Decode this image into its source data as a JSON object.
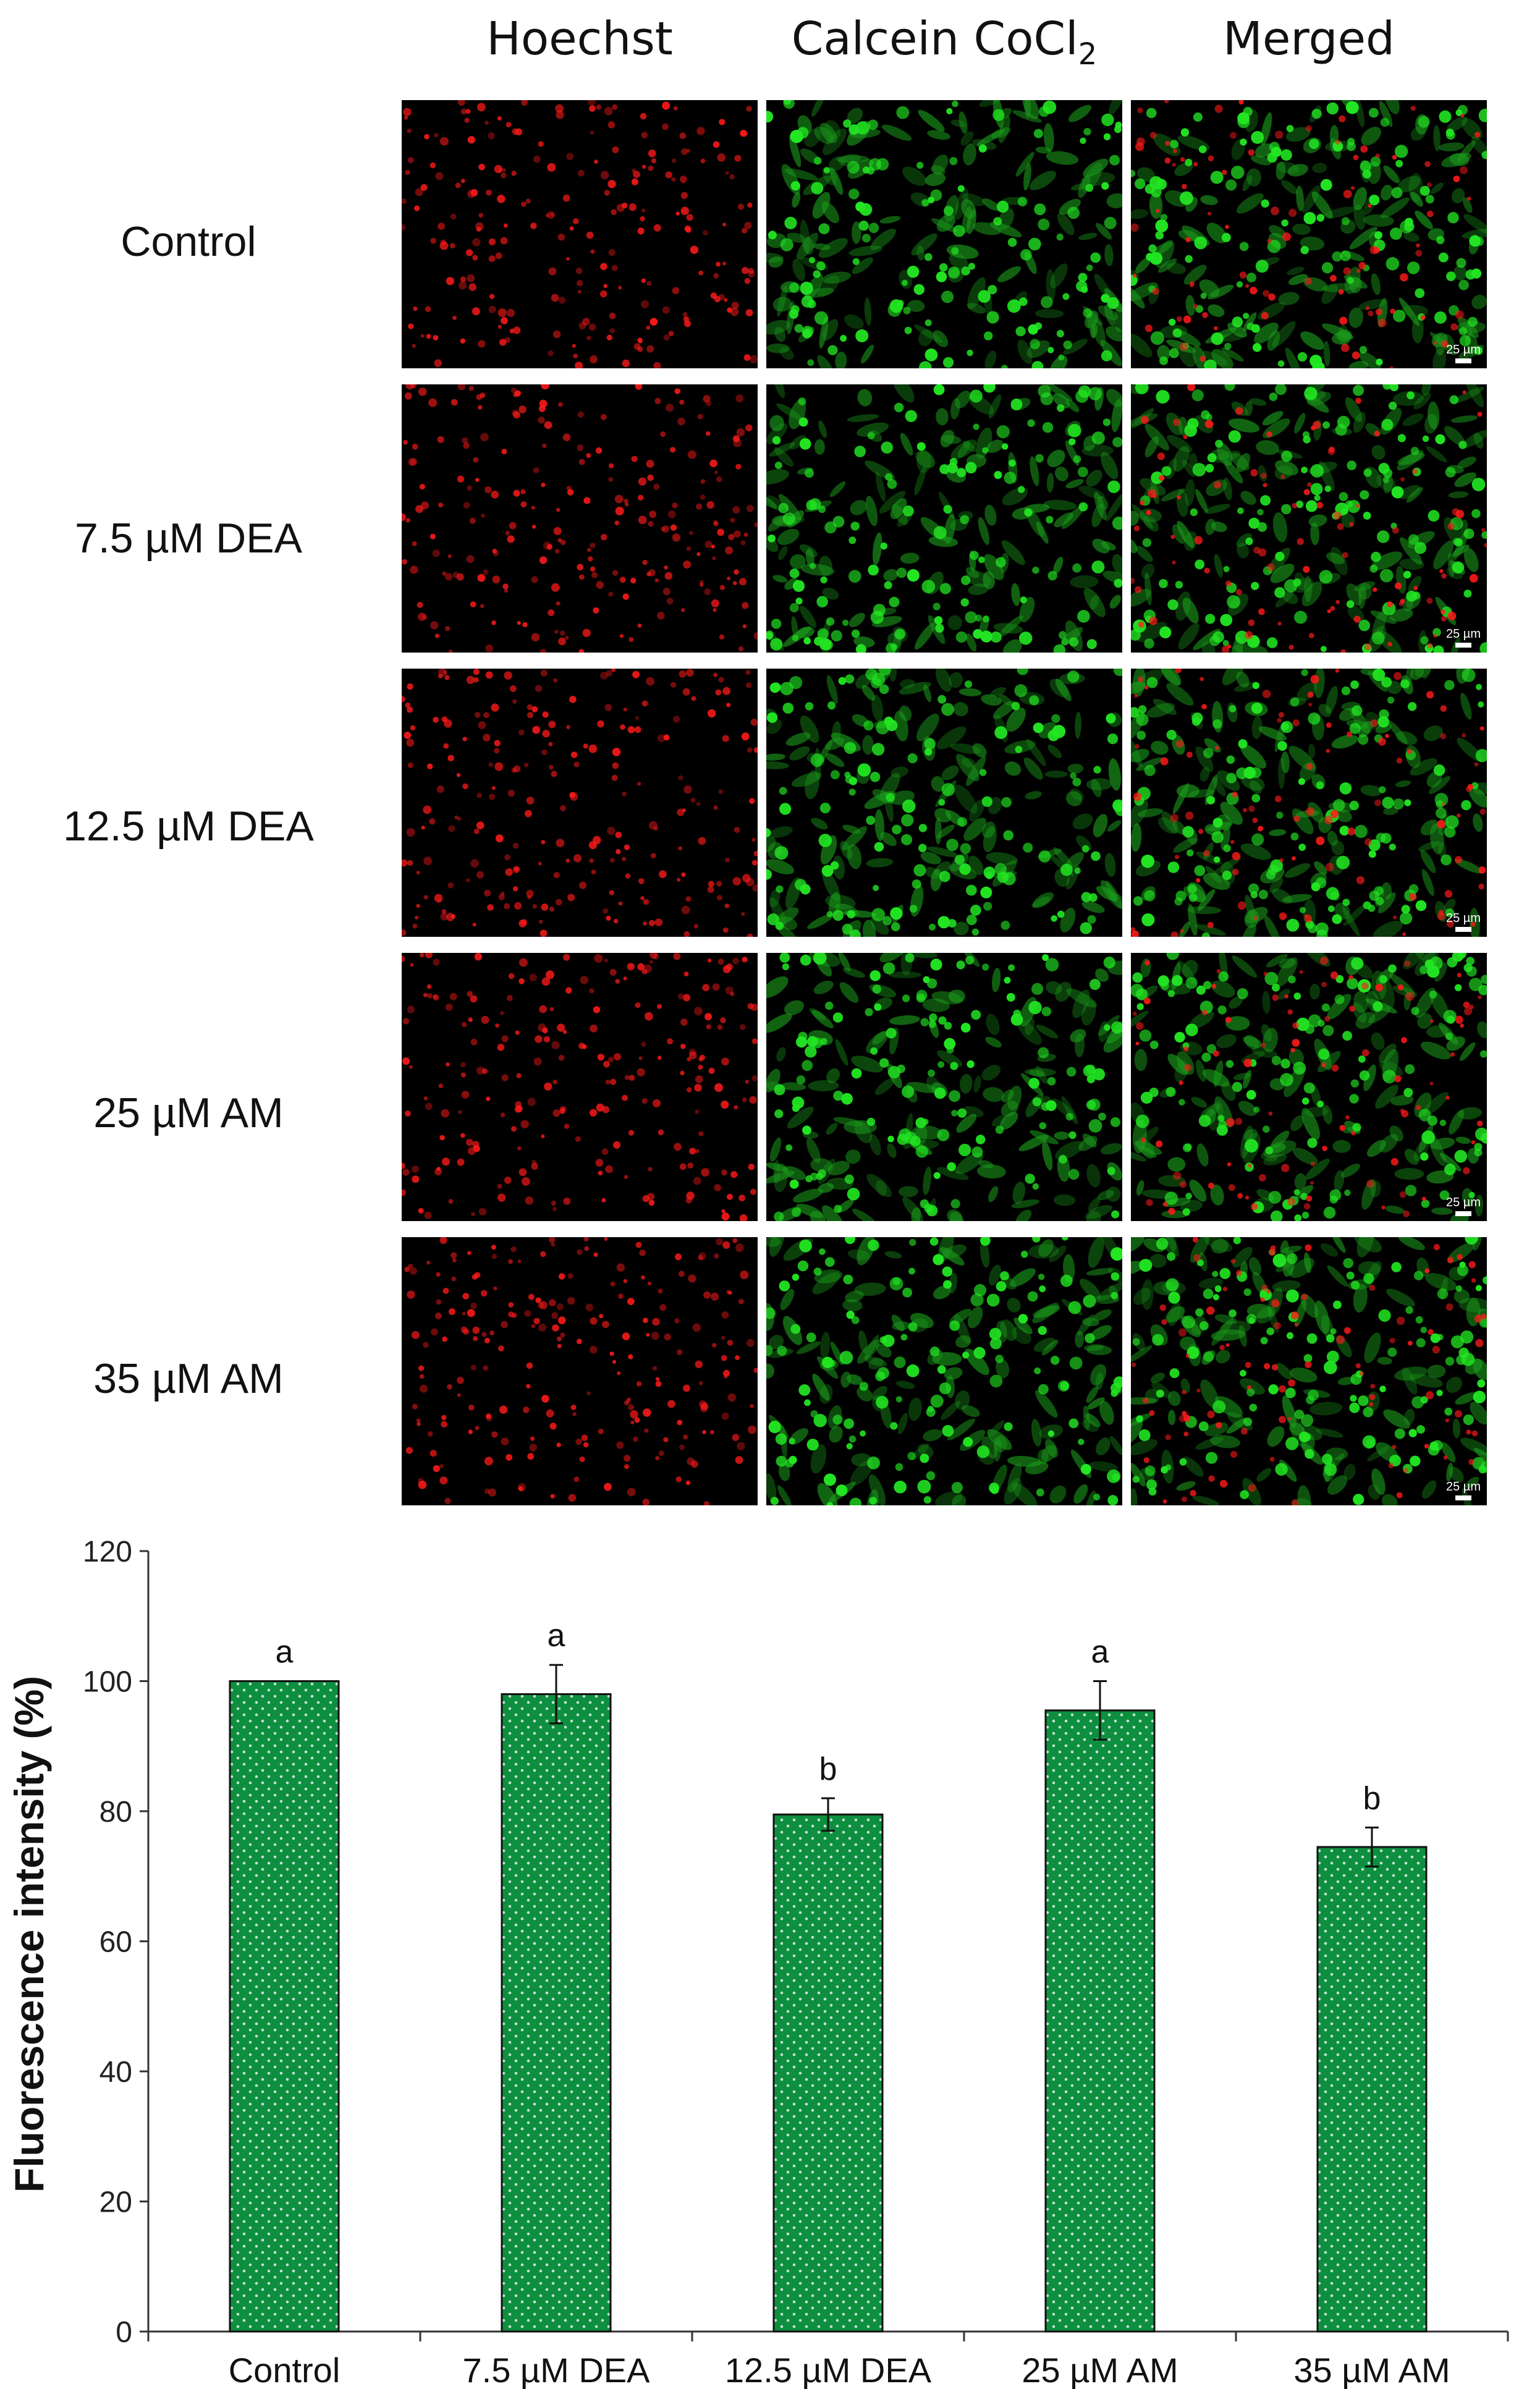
{
  "micrographs": {
    "columns": [
      "Hoechst",
      "Calcein CoCl",
      "Merged"
    ],
    "column_subscript": "2",
    "rows": [
      "Control",
      "7.5 µM DEA",
      "12.5 µM DEA",
      "25 µM AM",
      "35 µM AM"
    ],
    "scale_bar_label": "25 µm",
    "colors": {
      "hoechst": "#ff1a1a",
      "calcein": "#22e622",
      "background": "#000000"
    }
  },
  "chart_data": {
    "type": "bar",
    "title": "",
    "xlabel": "",
    "ylabel": "Fluorescence intensity (%)",
    "categories": [
      "Control",
      "7.5 µM DEA",
      "12.5 µM DEA",
      "25 µM AM",
      "35 µM AM"
    ],
    "values": [
      100,
      98,
      79.5,
      95.5,
      74.5
    ],
    "errors": [
      0,
      4.5,
      2.5,
      4.5,
      3
    ],
    "significance": [
      "a",
      "a",
      "b",
      "a",
      "b"
    ],
    "ylim": [
      0,
      120
    ],
    "yticks": [
      0,
      20,
      40,
      60,
      80,
      100,
      120
    ],
    "grid": false,
    "legend": "none",
    "bar_color": "#0d8f3f",
    "dot_color": "#ffffff"
  }
}
